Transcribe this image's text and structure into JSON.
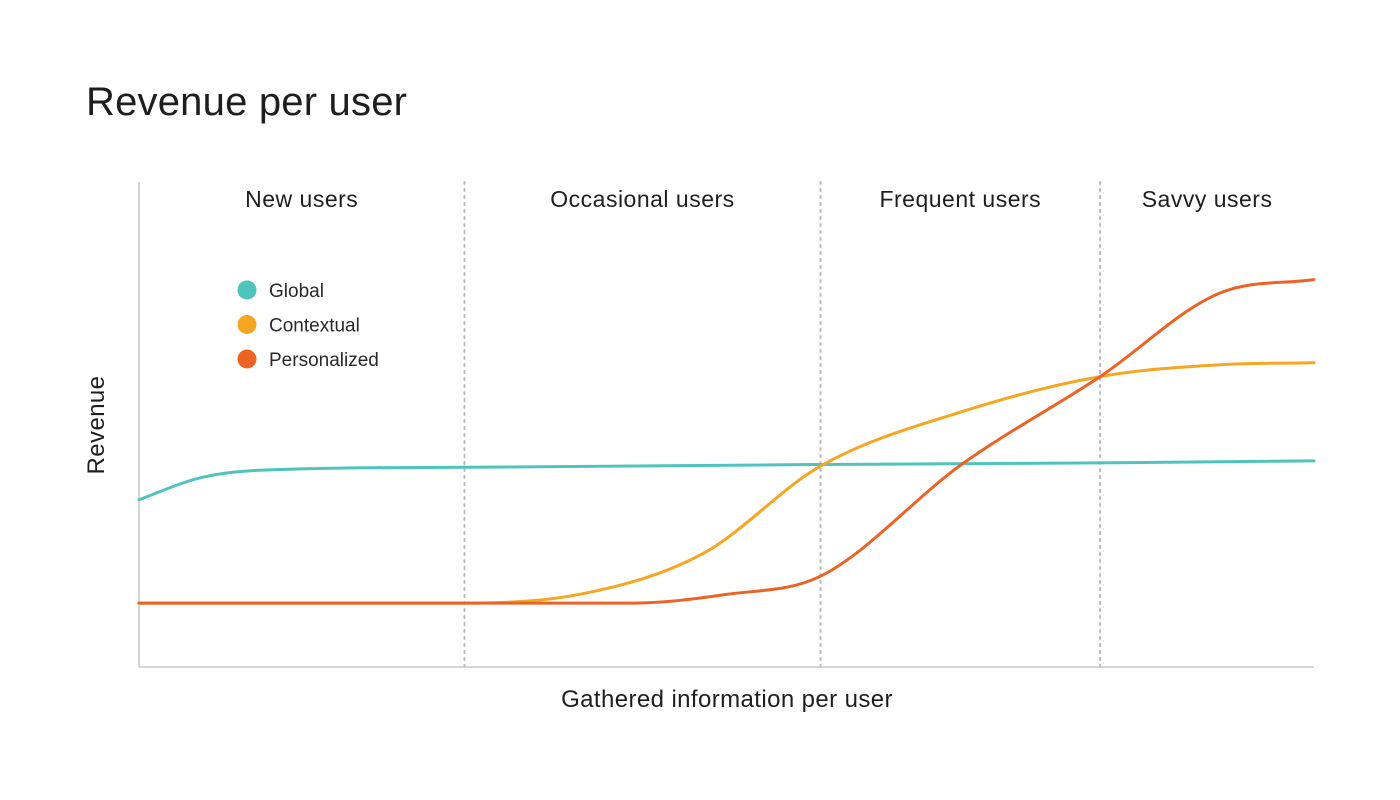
{
  "title": "Revenue per user",
  "colors": {
    "global": "#4fc4bd",
    "contextual": "#f5a623",
    "personalized": "#ec6326",
    "axis": "#c8c8c8",
    "divider": "#b8b8b8"
  },
  "chart_data": {
    "type": "line",
    "title": "Revenue per user",
    "xlabel": "Gathered information per user",
    "ylabel": "Revenue",
    "xlim": [
      0,
      100
    ],
    "ylim": [
      0,
      100
    ],
    "x_ticks": false,
    "y_ticks": false,
    "grid": false,
    "legend_position": "top-left",
    "segments": [
      {
        "label": "New users",
        "start": 0,
        "end": 27.7
      },
      {
        "label": "Occasional users",
        "start": 27.7,
        "end": 58
      },
      {
        "label": "Frequent users",
        "start": 58,
        "end": 81.8
      },
      {
        "label": "Savvy users",
        "start": 81.8,
        "end": 100
      }
    ],
    "series": [
      {
        "name": "Global",
        "color": "#4fc4bd",
        "points": [
          [
            0,
            33.4
          ],
          [
            5,
            38.8
          ],
          [
            10,
            40.8
          ],
          [
            27.7,
            41.6
          ],
          [
            58,
            42.3
          ],
          [
            81.8,
            42.7
          ],
          [
            100,
            43.2
          ]
        ]
      },
      {
        "name": "Contextual",
        "color": "#f5a623",
        "points": [
          [
            0,
            7.3
          ],
          [
            27.7,
            7.3
          ],
          [
            38,
            9.8
          ],
          [
            48,
            19.8
          ],
          [
            58,
            41.9
          ],
          [
            70,
            55.6
          ],
          [
            81.8,
            64.5
          ],
          [
            92,
            67.5
          ],
          [
            100,
            68
          ]
        ]
      },
      {
        "name": "Personalized",
        "color": "#ec6326",
        "points": [
          [
            0,
            7.3
          ],
          [
            27.7,
            7.3
          ],
          [
            42,
            7.3
          ],
          [
            50,
            9.5
          ],
          [
            58,
            14.1
          ],
          [
            70,
            42.3
          ],
          [
            81.8,
            64.5
          ],
          [
            92,
            85.6
          ],
          [
            100,
            89
          ]
        ]
      }
    ]
  }
}
